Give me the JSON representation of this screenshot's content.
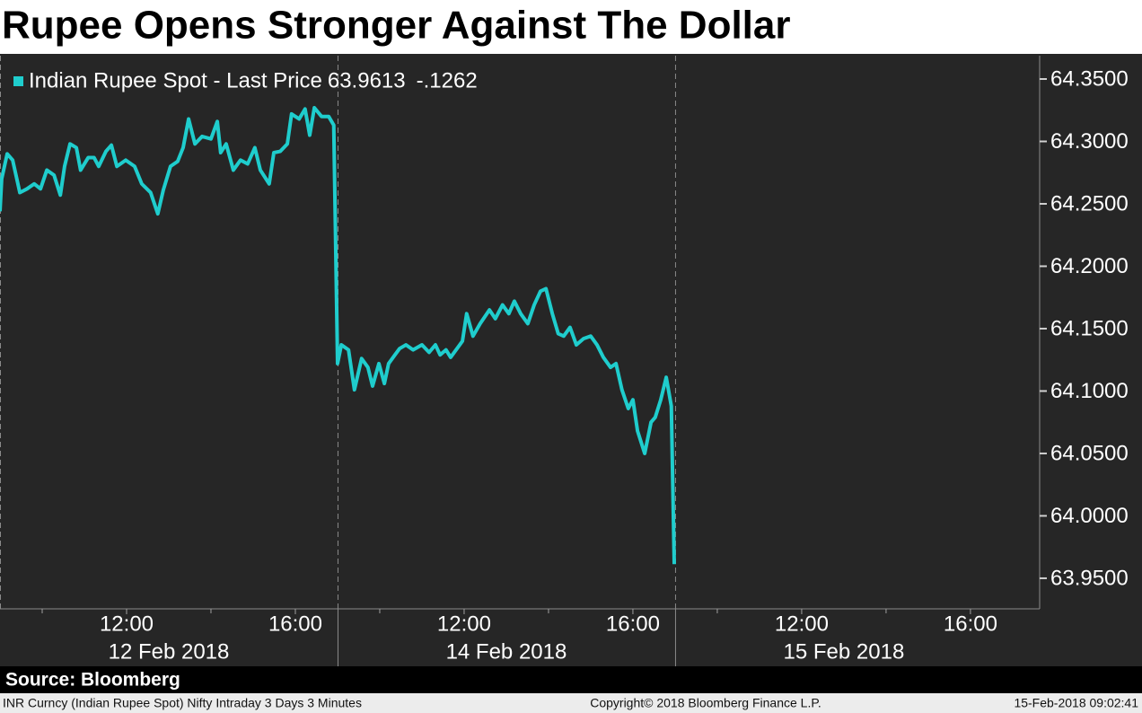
{
  "chart_data": {
    "type": "line",
    "title": "Rupee Opens Stronger Against The Dollar",
    "legend_last": 63.9613,
    "legend_change": {
      "value": -0.1262,
      "label": "-.1262"
    },
    "source": "Source: Bloomberg",
    "footnote": "INR Curncy (Indian Rupee Spot) Nifty Intraday 3 Days 3 Minutes",
    "copyright": "Copyright© 2018 Bloomberg Finance L.P.",
    "timestamp": "15-Feb-2018 09:02:41",
    "x": [
      0,
      0.04,
      0.17,
      0.3,
      0.47,
      0.64,
      0.81,
      0.96,
      1.11,
      1.28,
      1.43,
      1.53,
      1.66,
      1.81,
      1.91,
      2.09,
      2.23,
      2.34,
      2.51,
      2.64,
      2.77,
      2.98,
      3.19,
      3.36,
      3.57,
      3.74,
      3.87,
      4.04,
      4.21,
      4.34,
      4.47,
      4.62,
      4.79,
      5.0,
      5.15,
      5.23,
      5.36,
      5.53,
      5.7,
      5.87,
      6.04,
      6.17,
      6.38,
      6.49,
      6.64,
      6.81,
      6.91,
      7.09,
      7.23,
      7.34,
      7.45,
      7.62,
      7.79,
      7.91,
      8.0,
      8.09,
      8.26,
      8.4,
      8.57,
      8.72,
      8.83,
      8.98,
      9.11,
      9.21,
      9.36,
      9.47,
      9.62,
      9.79,
      10.0,
      10.17,
      10.32,
      10.43,
      10.57,
      10.68,
      10.81,
      10.96,
      11.06,
      11.21,
      11.38,
      11.6,
      11.74,
      11.91,
      12.06,
      12.19,
      12.34,
      12.51,
      12.66,
      12.81,
      12.94,
      13.09,
      13.23,
      13.36,
      13.51,
      13.66,
      13.83,
      14.0,
      14.15,
      14.3,
      14.47,
      14.6,
      14.74,
      14.89,
      15.0,
      15.11,
      15.28,
      15.43,
      15.53,
      15.66,
      15.79,
      15.91,
      15.98
    ],
    "series": [
      {
        "name": "Indian Rupee Spot - Last Price",
        "color": "#1fcdcd",
        "values": [
          64.244,
          64.27,
          64.29,
          64.285,
          64.259,
          64.262,
          64.266,
          64.262,
          64.277,
          64.273,
          64.257,
          64.28,
          64.298,
          64.295,
          64.277,
          64.287,
          64.287,
          64.28,
          64.292,
          64.297,
          64.28,
          64.285,
          64.28,
          64.266,
          64.259,
          64.242,
          64.261,
          64.28,
          64.284,
          64.295,
          64.318,
          64.298,
          64.304,
          64.302,
          64.316,
          64.291,
          64.298,
          64.277,
          64.285,
          64.282,
          64.295,
          64.277,
          64.266,
          64.291,
          64.292,
          64.298,
          64.322,
          64.318,
          64.326,
          64.305,
          64.327,
          64.32,
          64.32,
          64.313,
          64.122,
          64.137,
          64.133,
          64.101,
          64.126,
          64.119,
          64.104,
          64.122,
          64.106,
          64.122,
          64.129,
          64.134,
          64.137,
          64.133,
          64.137,
          64.131,
          64.137,
          64.129,
          64.133,
          64.127,
          64.133,
          64.14,
          64.162,
          64.144,
          64.154,
          64.165,
          64.158,
          64.169,
          64.162,
          64.172,
          64.162,
          64.154,
          64.169,
          64.18,
          64.182,
          64.162,
          64.146,
          64.144,
          64.151,
          64.137,
          64.142,
          64.144,
          64.137,
          64.127,
          64.119,
          64.122,
          64.101,
          64.086,
          64.093,
          64.068,
          64.05,
          64.075,
          64.079,
          64.093,
          64.111,
          64.088,
          63.9613
        ]
      }
    ],
    "xlim": [
      0,
      24.64
    ],
    "xticks": [
      {
        "value": 3,
        "label": "12:00"
      },
      {
        "value": 7,
        "label": "16:00"
      },
      {
        "value": 11,
        "label": "12:00"
      },
      {
        "value": 15,
        "label": "16:00"
      },
      {
        "value": 19,
        "label": "12:00"
      },
      {
        "value": 23,
        "label": "16:00"
      }
    ],
    "xticks_minor": [
      1,
      5,
      9,
      13,
      17,
      21
    ],
    "date_labels": [
      {
        "value": 4,
        "label": "12 Feb 2018"
      },
      {
        "value": 12,
        "label": "14 Feb 2018"
      },
      {
        "value": 20,
        "label": "15 Feb 2018"
      }
    ],
    "day_breaks": [
      0,
      8,
      16
    ],
    "ylim": [
      63.9255,
      64.3687
    ],
    "yticks": [
      {
        "value": 63.95,
        "label": "63.9500"
      },
      {
        "value": 64.0,
        "label": "64.0000"
      },
      {
        "value": 64.05,
        "label": "64.0500"
      },
      {
        "value": 64.1,
        "label": "64.1000"
      },
      {
        "value": 64.15,
        "label": "64.1500"
      },
      {
        "value": 64.2,
        "label": "64.2000"
      },
      {
        "value": 64.25,
        "label": "64.2500"
      },
      {
        "value": 64.3,
        "label": "64.3000"
      },
      {
        "value": 64.35,
        "label": "64.3500"
      }
    ]
  }
}
